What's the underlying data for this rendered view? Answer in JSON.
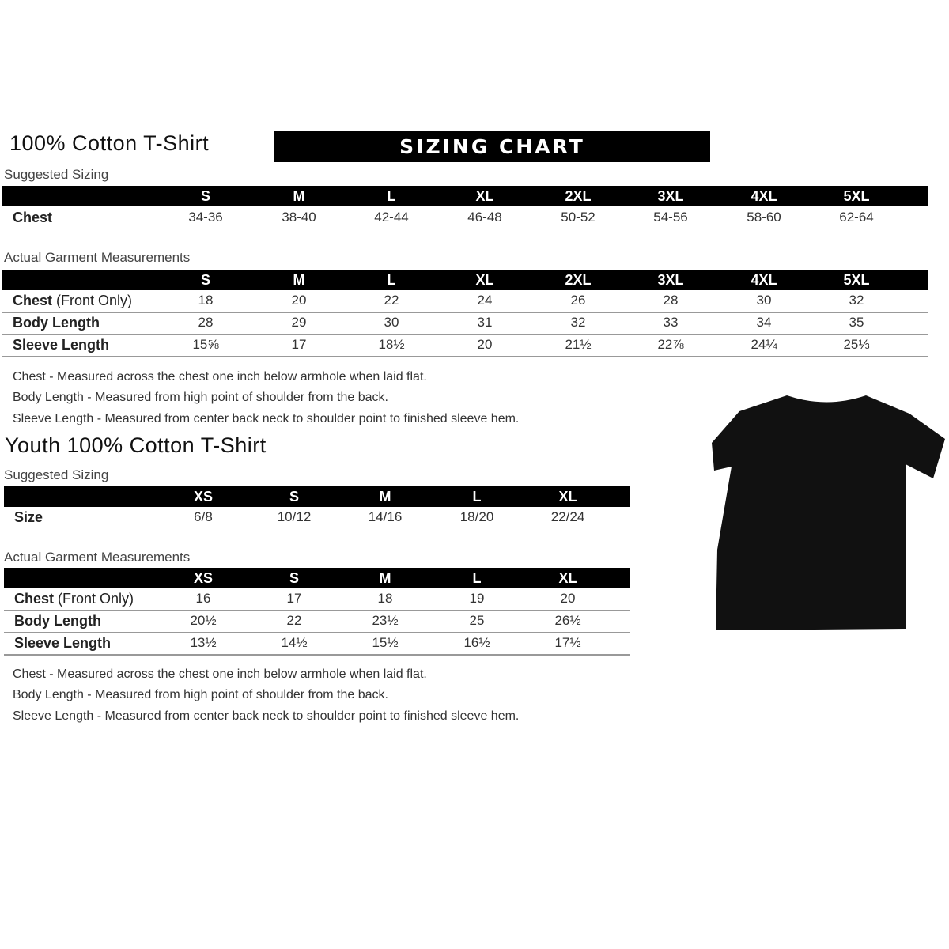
{
  "adult": {
    "title": "100% Cotton T-Shirt",
    "banner": "SIZING CHART",
    "suggested_label": "Suggested Sizing",
    "sizes": [
      "S",
      "M",
      "L",
      "XL",
      "2XL",
      "3XL",
      "4XL",
      "5XL"
    ],
    "suggested_rows": [
      {
        "label": "Chest",
        "values": [
          "34-36",
          "38-40",
          "42-44",
          "46-48",
          "50-52",
          "54-56",
          "58-60",
          "62-64"
        ]
      }
    ],
    "measurements_label": "Actual Garment Measurements",
    "measurement_rows": [
      {
        "label": "Chest",
        "label_note": " (Front Only)",
        "values": [
          "18",
          "20",
          "22",
          "24",
          "26",
          "28",
          "30",
          "32"
        ]
      },
      {
        "label": "Body Length",
        "label_note": "",
        "values": [
          "28",
          "29",
          "30",
          "31",
          "32",
          "33",
          "34",
          "35"
        ]
      },
      {
        "label": "Sleeve Length",
        "label_note": "",
        "values": [
          "15⅝",
          "17",
          "18½",
          "20",
          "21½",
          "22⅞",
          "24¼",
          "25⅓"
        ]
      }
    ],
    "notes": [
      "Chest - Measured across the chest one inch below armhole when laid flat.",
      "Body Length - Measured from high point of shoulder from the back.",
      "Sleeve Length - Measured from center back neck to shoulder point to finished sleeve hem."
    ]
  },
  "youth": {
    "title": "Youth 100% Cotton T-Shirt",
    "suggested_label": "Suggested Sizing",
    "sizes": [
      "XS",
      "S",
      "M",
      "L",
      "XL"
    ],
    "suggested_rows": [
      {
        "label": "Size",
        "values": [
          "6/8",
          "10/12",
          "14/16",
          "18/20",
          "22/24"
        ]
      }
    ],
    "measurements_label": "Actual Garment Measurements",
    "measurement_rows": [
      {
        "label": "Chest",
        "label_note": " (Front Only)",
        "values": [
          "16",
          "17",
          "18",
          "19",
          "20"
        ]
      },
      {
        "label": "Body Length",
        "label_note": "",
        "values": [
          "20½",
          "22",
          "23½",
          "25",
          "26½"
        ]
      },
      {
        "label": "Sleeve Length",
        "label_note": "",
        "values": [
          "13½",
          "14½",
          "15½",
          "16½",
          "17½"
        ]
      }
    ],
    "notes": [
      "Chest - Measured across the chest one inch below armhole when laid flat.",
      "Body Length - Measured from high point of shoulder from the back.",
      "Sleeve Length - Measured from center back neck to shoulder point to finished sleeve hem."
    ]
  },
  "image": {
    "icon": "black-tshirt-icon",
    "color": "#111111"
  }
}
